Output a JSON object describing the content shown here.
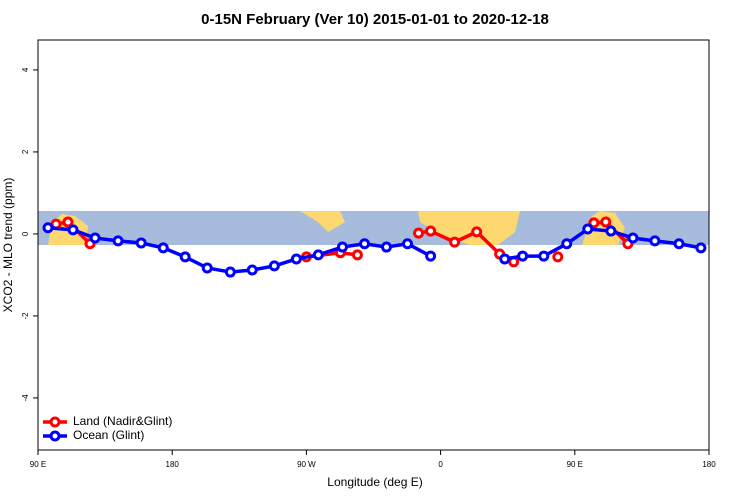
{
  "chart_data": {
    "type": "line",
    "title": "0-15N February (Ver 10)   2015-01-01 to 2020-12-18",
    "x_label": "Longitude (deg E)",
    "y_label": "XCO2 - MLO trend (ppm)",
    "xlim": [
      90,
      540
    ],
    "ylim": [
      -5.27,
      4.73
    ],
    "xticks": [
      {
        "value": 90,
        "label": "90 E"
      },
      180,
      {
        "value": 270,
        "label": "90 W"
      },
      {
        "value": 360,
        "label": "0"
      },
      {
        "value": 450,
        "label": "90 E"
      },
      {
        "value": 540,
        "label": "180"
      }
    ],
    "yticks": [
      -4,
      -2,
      0,
      2,
      4
    ],
    "legend": "bottom-left",
    "series": [
      {
        "name": "Land (Nadir&Glint)",
        "color": "#ff0000",
        "x": [
          102.1,
          110.1,
          124.9,
          200,
          270,
          292.8,
          304.2,
          330,
          345.2,
          353.3,
          369.4,
          384.2,
          399.6,
          409,
          420,
          438.6,
          450,
          462.8,
          470.8,
          485.6
        ],
        "values": [
          0.24,
          0.29,
          -0.24,
          null,
          -0.56,
          -0.46,
          -0.51,
          null,
          0.02,
          0.07,
          -0.2,
          0.05,
          -0.49,
          -0.68,
          null,
          -0.56,
          null,
          0.27,
          0.29,
          -0.24
        ]
      },
      {
        "name": "Ocean (Glint)",
        "color": "#0000ff",
        "x": [
          96.7,
          113.5,
          128.3,
          143.7,
          159.2,
          174,
          188.7,
          203.5,
          219,
          233.7,
          248.5,
          263.3,
          278,
          294.2,
          309,
          323.7,
          337.8,
          353.3,
          380,
          403,
          415,
          429.2,
          444.6,
          458.7,
          474.2,
          489,
          503.7,
          519.9,
          534.6
        ],
        "values": [
          0.15,
          0.1,
          -0.1,
          -0.17,
          -0.22,
          -0.34,
          -0.56,
          -0.83,
          -0.93,
          -0.88,
          -0.78,
          -0.61,
          -0.51,
          -0.32,
          -0.24,
          -0.32,
          -0.24,
          -0.54,
          null,
          -0.61,
          -0.54,
          -0.54,
          -0.24,
          0.12,
          0.07,
          -0.1,
          -0.17,
          -0.24,
          -0.34
        ]
      }
    ]
  }
}
